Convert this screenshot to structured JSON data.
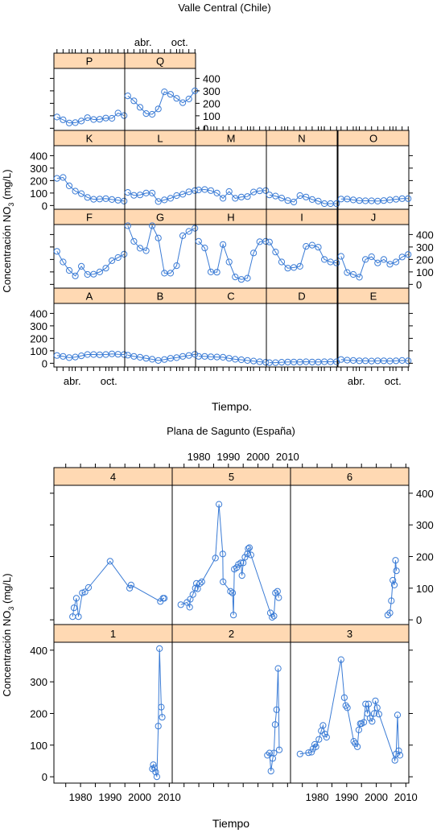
{
  "colors": {
    "strip": "#ffd9b3",
    "series": "#3a7bd5",
    "frame": "#000000"
  },
  "chart_data": [
    {
      "type": "line",
      "title": "Valle Central (Chile)",
      "xlabel": "Tiempo.",
      "ylabel": "Concentración NO3 (mg/L)",
      "ylabel_main": "Concentración NO",
      "ylabel_sub": "3",
      "ylabel_unit": " (mg/L)",
      "xlim": [
        0,
        11.6
      ],
      "ylim": [
        -30,
        480
      ],
      "xticks": [
        {
          "label": "abr.",
          "value": 3
        },
        {
          "label": "oct.",
          "value": 9
        }
      ],
      "yticks": [
        0,
        100,
        200,
        300,
        400
      ],
      "grid": false,
      "panels": [
        {
          "label": "P",
          "values": [
            90,
            68,
            42,
            45,
            58,
            85,
            70,
            72,
            82,
            80,
            122,
            102
          ]
        },
        {
          "label": "Q",
          "values": [
            260,
            220,
            168,
            118,
            112,
            155,
            292,
            272,
            240,
            205,
            235,
            300
          ]
        },
        {
          "label": "K",
          "values": [
            218,
            225,
            158,
            115,
            95,
            65,
            50,
            52,
            55,
            48,
            42,
            35
          ]
        },
        {
          "label": "L",
          "values": [
            105,
            82,
            85,
            100,
            100,
            32,
            45,
            58,
            80,
            90,
            110,
            120
          ]
        },
        {
          "label": "M",
          "values": [
            125,
            128,
            120,
            100,
            58,
            112,
            58,
            68,
            72,
            108,
            118,
            120
          ]
        },
        {
          "label": "N",
          "values": [
            85,
            76,
            60,
            40,
            28,
            80,
            68,
            48,
            35,
            15,
            15,
            15
          ]
        },
        {
          "label": "O",
          "values": [
            52,
            52,
            45,
            40,
            38,
            38,
            35,
            40,
            45,
            50,
            55,
            55
          ]
        },
        {
          "label": "F",
          "values": [
            265,
            180,
            112,
            68,
            145,
            80,
            82,
            100,
            130,
            190,
            215,
            242
          ]
        },
        {
          "label": "G",
          "values": [
            470,
            345,
            290,
            270,
            470,
            372,
            90,
            90,
            150,
            390,
            425,
            450
          ]
        },
        {
          "label": "H",
          "values": [
            345,
            292,
            100,
            98,
            320,
            180,
            60,
            40,
            50,
            252,
            342,
            345
          ]
        },
        {
          "label": "I",
          "values": [
            340,
            260,
            180,
            130,
            135,
            145,
            305,
            315,
            298,
            200,
            180,
            172
          ]
        },
        {
          "label": "J",
          "values": [
            225,
            95,
            80,
            58,
            200,
            222,
            172,
            200,
            162,
            180,
            220,
            240
          ]
        },
        {
          "label": "A",
          "values": [
            62,
            55,
            45,
            50,
            60,
            70,
            70,
            68,
            70,
            75,
            72,
            70
          ]
        },
        {
          "label": "B",
          "values": [
            65,
            55,
            48,
            40,
            32,
            22,
            30,
            40,
            45,
            55,
            62,
            72
          ]
        },
        {
          "label": "C",
          "values": [
            55,
            55,
            52,
            50,
            48,
            40,
            32,
            28,
            22,
            18,
            12,
            8
          ]
        },
        {
          "label": "D",
          "values": [
            5,
            5,
            8,
            10,
            10,
            10,
            12,
            10,
            10,
            12,
            12,
            12
          ]
        },
        {
          "label": "E",
          "values": [
            30,
            25,
            22,
            20,
            20,
            18,
            20,
            20,
            18,
            20,
            22,
            20
          ]
        }
      ]
    },
    {
      "type": "line",
      "title": "Plana de Sagunto (España)",
      "xlabel": "Tiempo",
      "ylabel": "Concentración NO3 (mg/L)",
      "ylabel_main": "Concentración NO",
      "ylabel_sub": "3",
      "ylabel_unit": " (mg/L)",
      "xlim": [
        1971,
        2011
      ],
      "ylim": [
        -20,
        425
      ],
      "xticks": [
        1980,
        1990,
        2000,
        2010
      ],
      "yticks": [
        0,
        100,
        200,
        300,
        400
      ],
      "grid": false,
      "panels": [
        {
          "label": "4",
          "points": [
            [
              1977.3,
              10
            ],
            [
              1977.8,
              38
            ],
            [
              1978.6,
              68
            ],
            [
              1979.3,
              10
            ],
            [
              1980.6,
              85
            ],
            [
              1981.5,
              88
            ],
            [
              1982.7,
              102
            ],
            [
              1990.0,
              185
            ],
            [
              1996.6,
              100
            ],
            [
              1997.1,
              110
            ],
            [
              2007.0,
              58
            ],
            [
              2007.9,
              68
            ],
            [
              2008.3,
              68
            ]
          ]
        },
        {
          "label": "5",
          "points": [
            [
              1973.9,
              48
            ],
            [
              1976.0,
              55
            ],
            [
              1976.9,
              40
            ],
            [
              1977.1,
              65
            ],
            [
              1978.0,
              80
            ],
            [
              1978.8,
              100
            ],
            [
              1979.2,
              115
            ],
            [
              1979.6,
              98
            ],
            [
              1980.4,
              115
            ],
            [
              1981.0,
              120
            ],
            [
              1985.6,
              195
            ],
            [
              1986.8,
              365
            ],
            [
              1988.1,
              208
            ],
            [
              1988.2,
              120
            ],
            [
              1990.7,
              90
            ],
            [
              1991.4,
              85
            ],
            [
              1991.7,
              15
            ],
            [
              1992.0,
              160
            ],
            [
              1992.8,
              165
            ],
            [
              1993.4,
              175
            ],
            [
              1994.2,
              180
            ],
            [
              1994.6,
              140
            ],
            [
              1995.0,
              180
            ],
            [
              1995.6,
              198
            ],
            [
              1996.4,
              208
            ],
            [
              1996.7,
              225
            ],
            [
              1997.1,
              228
            ],
            [
              1997.6,
              205
            ],
            [
              2004.2,
              22
            ],
            [
              2004.8,
              8
            ],
            [
              2005.4,
              12
            ],
            [
              2005.9,
              85
            ],
            [
              2006.6,
              90
            ],
            [
              2007.0,
              70
            ]
          ]
        },
        {
          "label": "6",
          "points": [
            [
              2003.9,
              15
            ],
            [
              2004.6,
              22
            ],
            [
              2005.1,
              60
            ],
            [
              2005.6,
              125
            ],
            [
              2006.1,
              110
            ],
            [
              2006.5,
              188
            ],
            [
              2006.8,
              155
            ]
          ]
        },
        {
          "label": "1",
          "points": [
            [
              2004.3,
              25
            ],
            [
              2004.6,
              38
            ],
            [
              2005.0,
              28
            ],
            [
              2005.4,
              15
            ],
            [
              2005.8,
              0
            ],
            [
              2006.3,
              160
            ],
            [
              2006.7,
              405
            ],
            [
              2007.3,
              220
            ],
            [
              2007.6,
              188
            ]
          ]
        },
        {
          "label": "2",
          "points": [
            [
              2003.2,
              68
            ],
            [
              2003.9,
              75
            ],
            [
              2004.4,
              18
            ],
            [
              2005.0,
              58
            ],
            [
              2005.4,
              75
            ],
            [
              2005.8,
              165
            ],
            [
              2006.3,
              212
            ],
            [
              2006.8,
              342
            ],
            [
              2007.2,
              85
            ]
          ]
        },
        {
          "label": "3",
          "points": [
            [
              1974.2,
              72
            ],
            [
              1977.1,
              76
            ],
            [
              1978.1,
              78
            ],
            [
              1978.6,
              88
            ],
            [
              1979.2,
              102
            ],
            [
              1979.6,
              95
            ],
            [
              1980.6,
              118
            ],
            [
              1981.4,
              145
            ],
            [
              1982.0,
              162
            ],
            [
              1982.6,
              135
            ],
            [
              1983.2,
              125
            ],
            [
              1988.1,
              370
            ],
            [
              1989.2,
              250
            ],
            [
              1989.7,
              225
            ],
            [
              1990.2,
              218
            ],
            [
              1992.4,
              112
            ],
            [
              1992.9,
              105
            ],
            [
              1993.6,
              95
            ],
            [
              1994.1,
              148
            ],
            [
              1994.6,
              168
            ],
            [
              1995.0,
              168
            ],
            [
              1995.8,
              172
            ],
            [
              1996.4,
              230
            ],
            [
              1997.0,
              200
            ],
            [
              1997.4,
              230
            ],
            [
              1997.9,
              185
            ],
            [
              1998.6,
              175
            ],
            [
              1999.3,
              200
            ],
            [
              1999.7,
              240
            ],
            [
              2000.3,
              218
            ],
            [
              2000.9,
              198
            ],
            [
              2006.3,
              52
            ],
            [
              2006.7,
              72
            ],
            [
              2007.2,
              195
            ],
            [
              2007.6,
              82
            ],
            [
              2008.0,
              68
            ]
          ]
        }
      ]
    }
  ]
}
